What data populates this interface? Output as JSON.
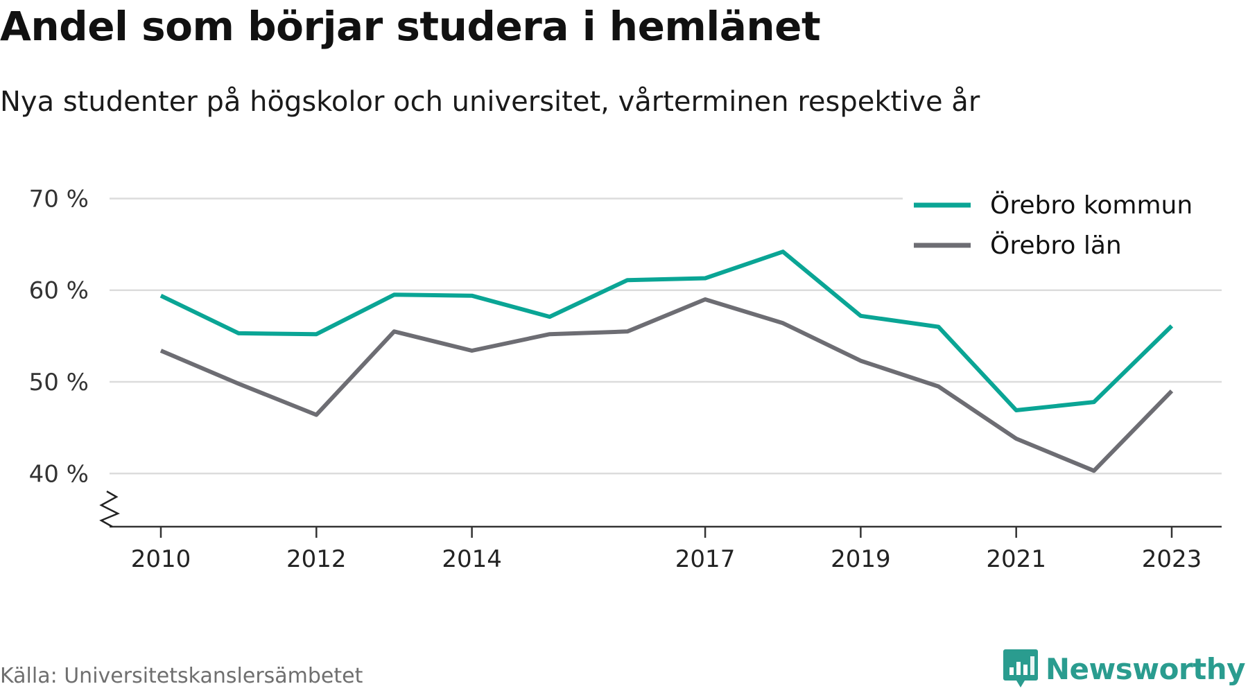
{
  "title": "Andel som börjar studera i hemlänet",
  "subtitle": "Nya studenter på högskolor och universitet, vårterminen respektive år",
  "source": "Källa: Universitetskanslersämbetet",
  "brand": {
    "name": "Newsworthy",
    "icon": "newsworthy-logo-icon",
    "color": "#2a9c8f"
  },
  "chart_data": {
    "type": "line",
    "x": [
      2010,
      2011,
      2012,
      2013,
      2014,
      2015,
      2016,
      2017,
      2018,
      2019,
      2020,
      2021,
      2022,
      2023
    ],
    "x_tick_labels": [
      "2010",
      "2012",
      "2014",
      "2017",
      "2019",
      "2021",
      "2023"
    ],
    "y_tick_labels": [
      "70 %",
      "60 %",
      "50 %",
      "40 %"
    ],
    "y_ticks": [
      70,
      60,
      50,
      40
    ],
    "ylim": [
      34.2,
      72
    ],
    "y_axis_break": true,
    "grid": true,
    "legend_position": "top-right",
    "series": [
      {
        "name": "Örebro kommun",
        "color": "#0aa595",
        "values": [
          59.4,
          55.3,
          55.2,
          59.5,
          59.4,
          57.1,
          61.1,
          61.3,
          64.2,
          57.2,
          56.0,
          46.9,
          47.8,
          56.1
        ]
      },
      {
        "name": "Örebro län",
        "color": "#6d6d73",
        "values": [
          53.4,
          49.8,
          46.4,
          55.5,
          53.4,
          55.2,
          55.5,
          59.0,
          56.4,
          52.3,
          49.5,
          43.8,
          40.3,
          49.0
        ]
      }
    ]
  }
}
